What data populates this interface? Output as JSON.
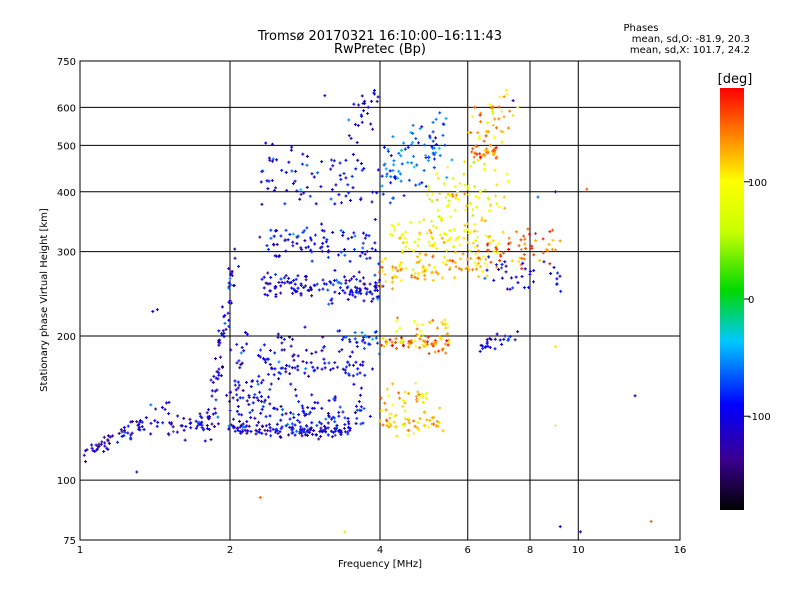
{
  "chart_data": {
    "type": "scatter",
    "title": "Tromsø 20170321 16:10:00–16:11:43",
    "subtitle": "RwPretec (Bp)",
    "xlabel": "Frequency [MHz]",
    "ylabel": "Stationary phase Virtual Height [km]",
    "x_scale": "log",
    "y_scale": "log",
    "xlim": [
      1,
      16
    ],
    "ylim": [
      75,
      750
    ],
    "x_ticks": [
      1,
      2,
      4,
      6,
      8,
      10,
      16
    ],
    "x_tick_labels": [
      "1",
      "2",
      "4",
      "6",
      "8",
      "10",
      "16"
    ],
    "y_ticks": [
      75,
      100,
      200,
      300,
      400,
      500,
      600,
      750
    ],
    "y_tick_labels": [
      "75",
      "100",
      "200",
      "300",
      "400",
      "500",
      "600",
      "750"
    ],
    "x_gridlines": [
      2,
      4,
      6,
      8,
      10
    ],
    "y_gridlines": [
      100,
      200,
      300,
      400,
      500,
      600
    ],
    "grid": true,
    "stats": {
      "heading": "Phases",
      "line_o": "mean, sd,O: -81.9, 20.3",
      "line_x": "mean, sd,X: 101.7, 24.2"
    },
    "colorbar": {
      "label": "[deg]",
      "range": [
        -180,
        180
      ],
      "ticks": [
        100,
        0,
        -100
      ],
      "tick_labels": [
        "100",
        "0",
        "-100"
      ],
      "colormap": "rainbow"
    },
    "series": [
      {
        "echo_traces": [
          {
            "f": [
              1.0,
              1.5
            ],
            "h": [
              112,
              140
            ],
            "phase": -110,
            "spread": 0.025,
            "n": 70
          },
          {
            "f": [
              1.5,
              1.9
            ],
            "h": [
              130,
              132
            ],
            "phase": -105,
            "spread": 0.025,
            "n": 40
          },
          {
            "f": [
              1.8,
              2.05
            ],
            "h": [
              120,
              300
            ],
            "phase": -110,
            "spread": 0.012,
            "n": 70
          },
          {
            "f": [
              2.0,
              3.5
            ],
            "h": [
              128,
              126
            ],
            "phase": -105,
            "spread": 0.015,
            "n": 140
          },
          {
            "f": [
              2.0,
              3.8
            ],
            "h": [
              145,
              138
            ],
            "phase": -100,
            "spread": 0.05,
            "n": 120
          },
          {
            "f": [
              2.0,
              3.8
            ],
            "h": [
              180,
              170
            ],
            "phase": -100,
            "spread": 0.07,
            "n": 130
          },
          {
            "f": [
              2.3,
              4.0
            ],
            "h": [
              255,
              250
            ],
            "phase": -100,
            "spread": 0.03,
            "n": 140
          },
          {
            "f": [
              2.3,
              4.0
            ],
            "h": [
              320,
              305
            ],
            "phase": -95,
            "spread": 0.05,
            "n": 90
          },
          {
            "f": [
              2.3,
              4.0
            ],
            "h": [
              430,
              420
            ],
            "phase": -95,
            "spread": 0.08,
            "n": 80
          },
          {
            "f": [
              3.3,
              4.0
            ],
            "h": [
              200,
              195
            ],
            "phase": -80,
            "spread": 0.03,
            "n": 30
          },
          {
            "f": [
              3.5,
              4.0
            ],
            "h": [
              550,
              600
            ],
            "phase": -100,
            "spread": 0.08,
            "n": 25
          },
          {
            "f": [
              4.0,
              5.3
            ],
            "h": [
              135,
              130
            ],
            "phase": 120,
            "spread": 0.03,
            "n": 60
          },
          {
            "f": [
              4.1,
              5.0
            ],
            "h": [
              150,
              150
            ],
            "phase": 110,
            "spread": 0.02,
            "n": 25
          },
          {
            "f": [
              4.0,
              5.5
            ],
            "h": [
              195,
              192
            ],
            "phase": 140,
            "spread": 0.02,
            "n": 60
          },
          {
            "f": [
              4.2,
              5.5
            ],
            "h": [
              205,
              210
            ],
            "phase": 120,
            "spread": 0.03,
            "n": 30
          },
          {
            "f": [
              4.0,
              6.5
            ],
            "h": [
              270,
              285
            ],
            "phase": 120,
            "spread": 0.04,
            "n": 100
          },
          {
            "f": [
              4.2,
              7.0
            ],
            "h": [
              320,
              320
            ],
            "phase": 100,
            "spread": 0.05,
            "n": 90
          },
          {
            "f": [
              4.0,
              5.5
            ],
            "h": [
              430,
              520
            ],
            "phase": -60,
            "spread": 0.08,
            "n": 90
          },
          {
            "f": [
              5.0,
              7.3
            ],
            "h": [
              380,
              400
            ],
            "phase": 90,
            "spread": 0.08,
            "n": 80
          },
          {
            "f": [
              6.1,
              7.0
            ],
            "h": [
              480,
              485
            ],
            "phase": 140,
            "spread": 0.02,
            "n": 35
          },
          {
            "f": [
              6.0,
              7.5
            ],
            "h": [
              550,
              600
            ],
            "phase": 120,
            "spread": 0.06,
            "n": 40
          },
          {
            "f": [
              6.3,
              7.5
            ],
            "h": [
              190,
              200
            ],
            "phase": -105,
            "spread": 0.02,
            "n": 25
          },
          {
            "f": [
              6.5,
              9.2
            ],
            "h": [
              300,
              310
            ],
            "phase": 150,
            "spread": 0.04,
            "n": 50
          },
          {
            "f": [
              6.5,
              9.2
            ],
            "h": [
              270,
              265
            ],
            "phase": -100,
            "spread": 0.05,
            "n": 35
          }
        ],
        "isolated_points": [
          {
            "f": 1.4,
            "h": 225,
            "phase": -100
          },
          {
            "f": 1.43,
            "h": 227,
            "phase": -100
          },
          {
            "f": 1.3,
            "h": 104,
            "phase": -120
          },
          {
            "f": 2.3,
            "h": 92,
            "phase": 150
          },
          {
            "f": 3.1,
            "h": 635,
            "phase": -110
          },
          {
            "f": 3.4,
            "h": 78,
            "phase": 60
          },
          {
            "f": 3.9,
            "h": 640,
            "phase": -110
          },
          {
            "f": 7.4,
            "h": 620,
            "phase": -120
          },
          {
            "f": 8.3,
            "h": 390,
            "phase": -60
          },
          {
            "f": 8.8,
            "h": 270,
            "phase": -110
          },
          {
            "f": 9.0,
            "h": 190,
            "phase": 110
          },
          {
            "f": 9.0,
            "h": 130,
            "phase": 90
          },
          {
            "f": 9.2,
            "h": 80,
            "phase": -110
          },
          {
            "f": 9.0,
            "h": 400,
            "phase": -110
          },
          {
            "f": 10.1,
            "h": 78,
            "phase": -110
          },
          {
            "f": 10.4,
            "h": 405,
            "phase": 150
          },
          {
            "f": 13.0,
            "h": 150,
            "phase": -110
          },
          {
            "f": 14.0,
            "h": 82,
            "phase": 150
          }
        ]
      }
    ]
  }
}
